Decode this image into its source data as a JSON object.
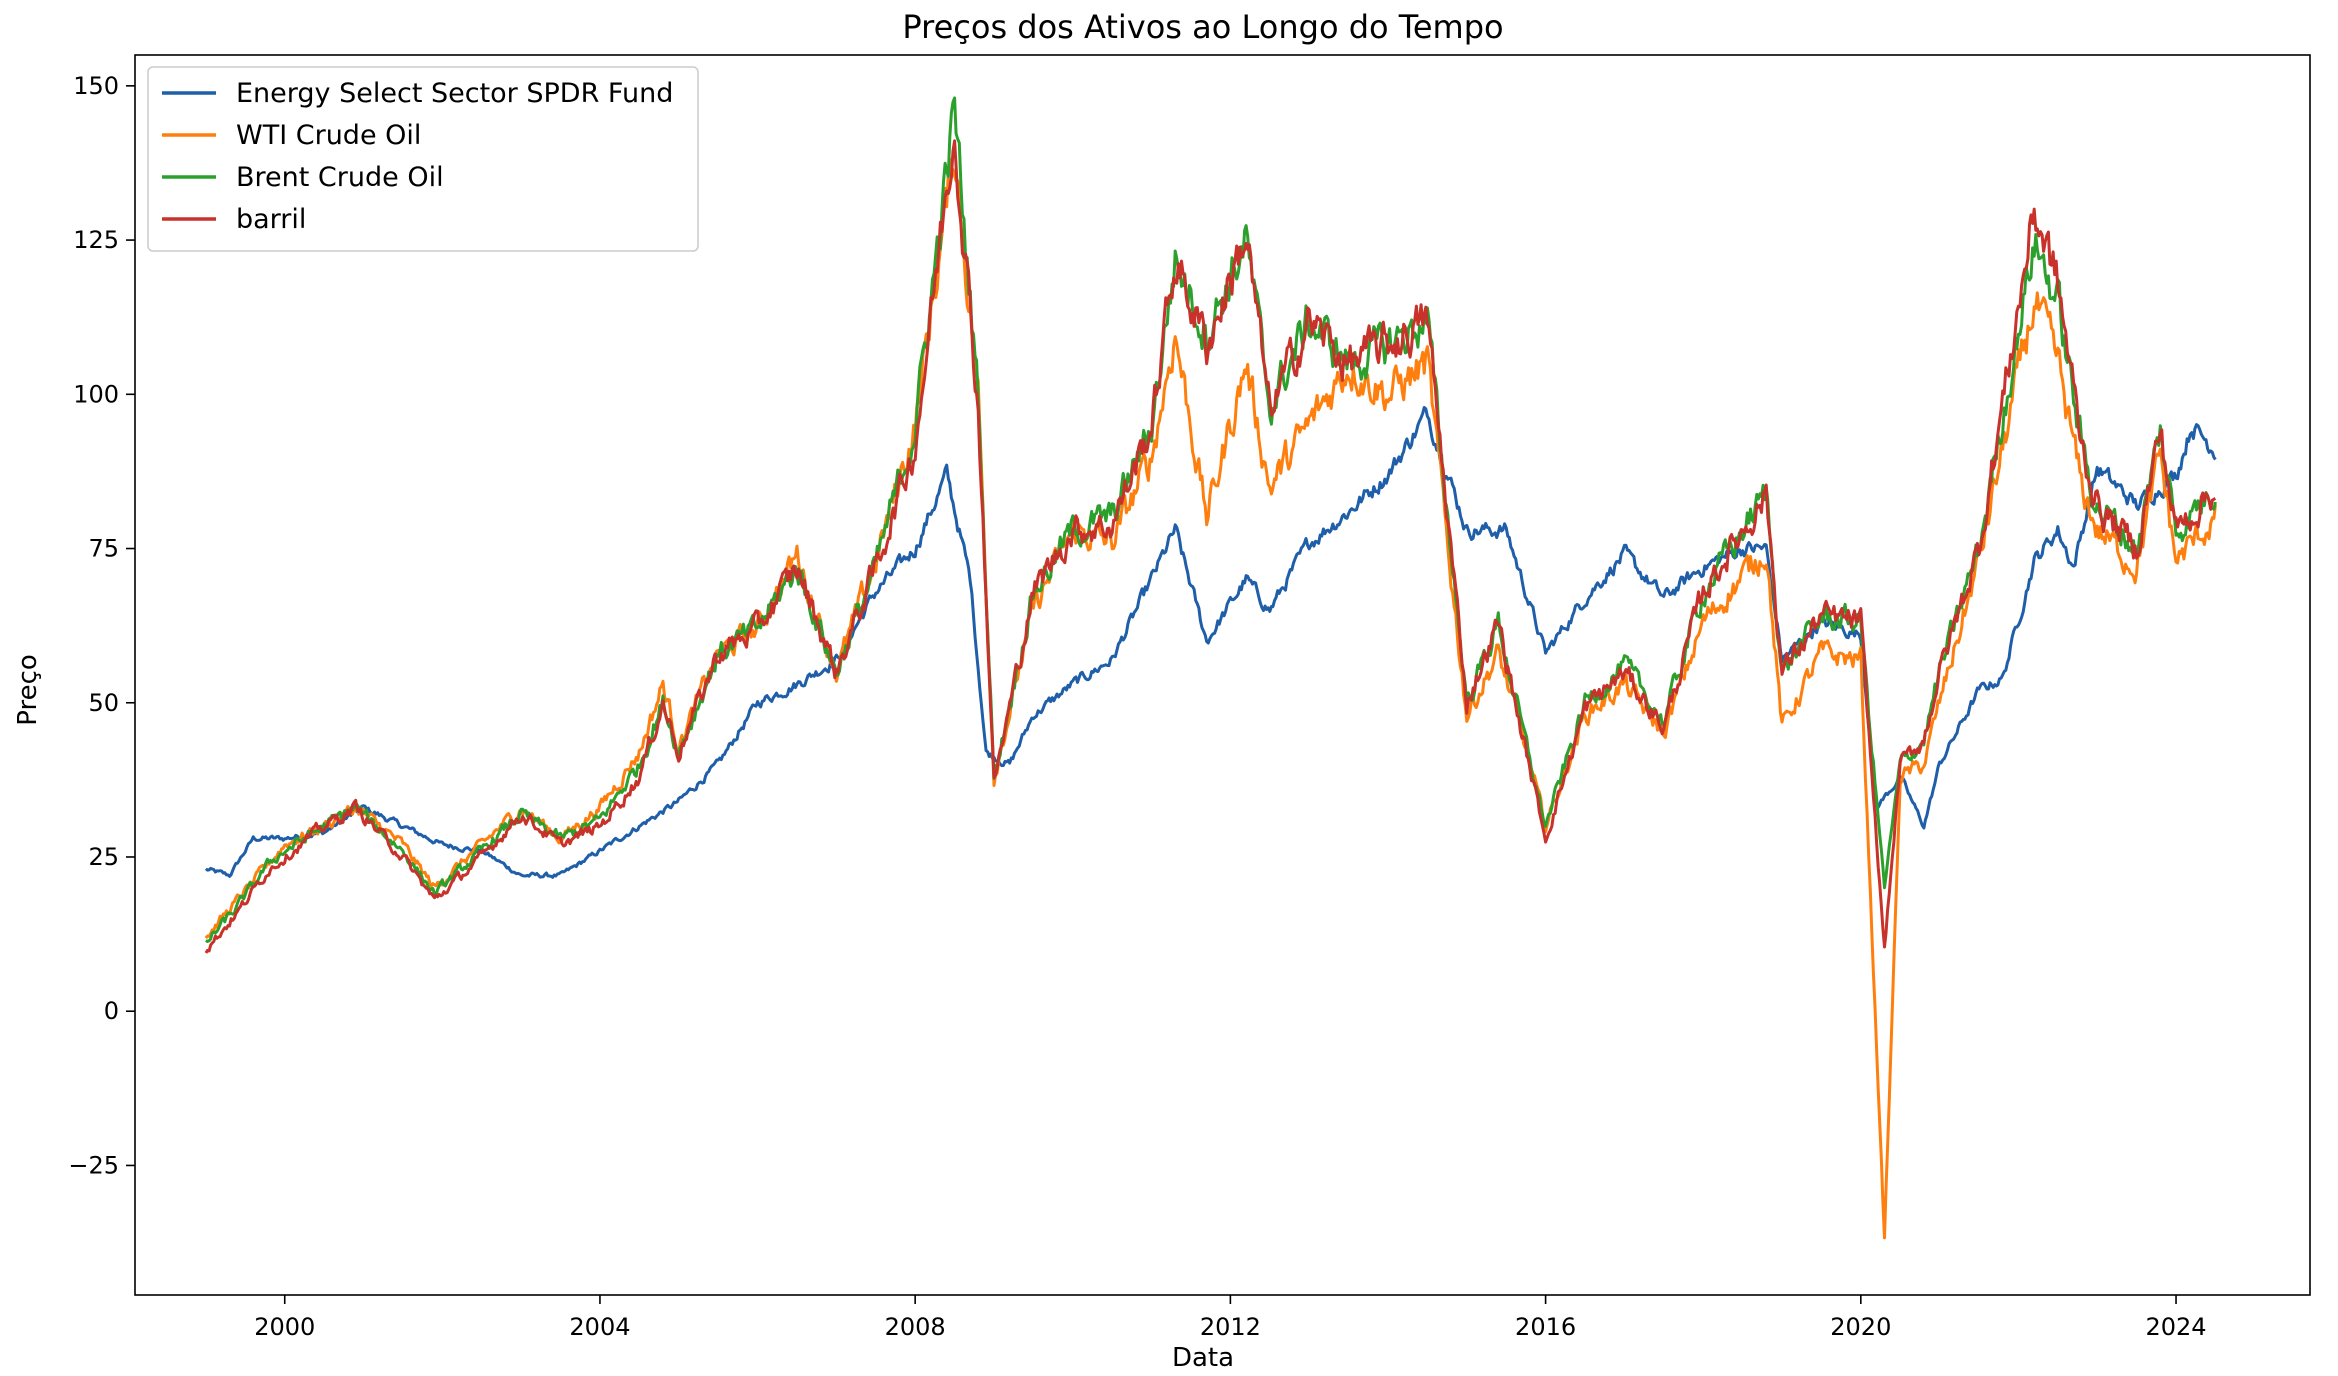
{
  "chart_data": {
    "type": "line",
    "title": "Preços dos Ativos ao Longo do Tempo",
    "xlabel": "Data",
    "ylabel": "Preço",
    "xlim": [
      1998.1,
      2025.7
    ],
    "ylim": [
      -46,
      155
    ],
    "x_ticks": [
      2000,
      2004,
      2008,
      2012,
      2016,
      2020,
      2024
    ],
    "x_tick_labels": [
      "2000",
      "2004",
      "2008",
      "2012",
      "2016",
      "2020",
      "2024"
    ],
    "y_ticks": [
      -25,
      0,
      25,
      50,
      75,
      100,
      125,
      150
    ],
    "y_tick_labels": [
      "−25",
      "0",
      "25",
      "50",
      "75",
      "100",
      "125",
      "150"
    ],
    "grid": false,
    "legend_position": "top-left",
    "series": [
      {
        "name": "Energy Select Sector SPDR Fund",
        "color": "#1f5ea8",
        "points": [
          [
            1999.0,
            23
          ],
          [
            1999.3,
            22
          ],
          [
            1999.6,
            28
          ],
          [
            2000.0,
            28
          ],
          [
            2000.5,
            29
          ],
          [
            2001.0,
            33
          ],
          [
            2001.5,
            30
          ],
          [
            2002.0,
            27
          ],
          [
            2002.5,
            26
          ],
          [
            2003.0,
            22
          ],
          [
            2003.5,
            22
          ],
          [
            2004.0,
            26
          ],
          [
            2004.5,
            30
          ],
          [
            2005.0,
            34
          ],
          [
            2005.5,
            40
          ],
          [
            2006.0,
            50
          ],
          [
            2006.5,
            53
          ],
          [
            2007.0,
            57
          ],
          [
            2007.5,
            68
          ],
          [
            2008.0,
            75
          ],
          [
            2008.4,
            87
          ],
          [
            2008.7,
            70
          ],
          [
            2008.9,
            42
          ],
          [
            2009.2,
            40
          ],
          [
            2009.5,
            48
          ],
          [
            2010.0,
            53
          ],
          [
            2010.5,
            57
          ],
          [
            2011.0,
            70
          ],
          [
            2011.3,
            78
          ],
          [
            2011.7,
            60
          ],
          [
            2012.2,
            70
          ],
          [
            2012.5,
            65
          ],
          [
            2013.0,
            76
          ],
          [
            2013.5,
            81
          ],
          [
            2014.0,
            87
          ],
          [
            2014.5,
            97
          ],
          [
            2015.0,
            78
          ],
          [
            2015.5,
            78
          ],
          [
            2015.8,
            66
          ],
          [
            2016.0,
            58
          ],
          [
            2016.5,
            67
          ],
          [
            2017.0,
            74
          ],
          [
            2017.5,
            67
          ],
          [
            2018.0,
            72
          ],
          [
            2018.5,
            75
          ],
          [
            2018.8,
            75
          ],
          [
            2019.0,
            57
          ],
          [
            2019.5,
            63
          ],
          [
            2020.0,
            61
          ],
          [
            2020.2,
            33
          ],
          [
            2020.5,
            38
          ],
          [
            2020.8,
            30
          ],
          [
            2021.0,
            40
          ],
          [
            2021.5,
            52
          ],
          [
            2021.8,
            54
          ],
          [
            2022.2,
            73
          ],
          [
            2022.5,
            78
          ],
          [
            2022.7,
            72
          ],
          [
            2023.0,
            88
          ],
          [
            2023.5,
            82
          ],
          [
            2024.0,
            87
          ],
          [
            2024.2,
            95
          ],
          [
            2024.5,
            91
          ]
        ]
      },
      {
        "name": "WTI Crude Oil",
        "color": "#ff7f0e",
        "points": [
          [
            1999.0,
            12
          ],
          [
            1999.4,
            18
          ],
          [
            1999.8,
            24
          ],
          [
            2000.0,
            27
          ],
          [
            2000.5,
            30
          ],
          [
            2000.9,
            33
          ],
          [
            2001.5,
            27
          ],
          [
            2001.9,
            20
          ],
          [
            2002.5,
            27
          ],
          [
            2003.0,
            33
          ],
          [
            2003.5,
            28
          ],
          [
            2004.0,
            33
          ],
          [
            2004.5,
            42
          ],
          [
            2004.8,
            53
          ],
          [
            2005.0,
            43
          ],
          [
            2005.5,
            58
          ],
          [
            2006.0,
            62
          ],
          [
            2006.5,
            74
          ],
          [
            2007.0,
            55
          ],
          [
            2007.5,
            73
          ],
          [
            2008.0,
            95
          ],
          [
            2008.5,
            140
          ],
          [
            2008.8,
            100
          ],
          [
            2009.0,
            38
          ],
          [
            2009.5,
            65
          ],
          [
            2010.0,
            78
          ],
          [
            2010.5,
            76
          ],
          [
            2011.0,
            90
          ],
          [
            2011.3,
            110
          ],
          [
            2011.7,
            80
          ],
          [
            2012.2,
            105
          ],
          [
            2012.5,
            85
          ],
          [
            2013.0,
            95
          ],
          [
            2013.5,
            105
          ],
          [
            2014.0,
            100
          ],
          [
            2014.5,
            105
          ],
          [
            2015.0,
            48
          ],
          [
            2015.4,
            58
          ],
          [
            2015.7,
            45
          ],
          [
            2016.0,
            30
          ],
          [
            2016.5,
            48
          ],
          [
            2017.0,
            53
          ],
          [
            2017.5,
            45
          ],
          [
            2018.0,
            63
          ],
          [
            2018.8,
            75
          ],
          [
            2019.0,
            46
          ],
          [
            2019.5,
            58
          ],
          [
            2020.0,
            57
          ],
          [
            2020.3,
            -37
          ],
          [
            2020.5,
            38
          ],
          [
            2020.8,
            40
          ],
          [
            2021.0,
            50
          ],
          [
            2021.5,
            73
          ],
          [
            2022.2,
            115
          ],
          [
            2022.5,
            105
          ],
          [
            2022.8,
            85
          ],
          [
            2023.0,
            78
          ],
          [
            2023.5,
            72
          ],
          [
            2023.8,
            90
          ],
          [
            2024.0,
            73
          ],
          [
            2024.5,
            80
          ]
        ]
      },
      {
        "name": "Brent Crude Oil",
        "color": "#2ca02c",
        "points": [
          [
            1999.0,
            11
          ],
          [
            1999.4,
            17
          ],
          [
            1999.8,
            24
          ],
          [
            2000.0,
            26
          ],
          [
            2000.5,
            30
          ],
          [
            2000.9,
            33
          ],
          [
            2001.5,
            26
          ],
          [
            2001.9,
            19
          ],
          [
            2002.5,
            26
          ],
          [
            2003.0,
            32
          ],
          [
            2003.5,
            28
          ],
          [
            2004.0,
            31
          ],
          [
            2004.5,
            40
          ],
          [
            2004.8,
            50
          ],
          [
            2005.0,
            42
          ],
          [
            2005.5,
            58
          ],
          [
            2006.0,
            62
          ],
          [
            2006.5,
            72
          ],
          [
            2007.0,
            55
          ],
          [
            2007.5,
            72
          ],
          [
            2008.0,
            95
          ],
          [
            2008.5,
            146
          ],
          [
            2008.8,
            100
          ],
          [
            2009.0,
            38
          ],
          [
            2009.5,
            68
          ],
          [
            2010.0,
            78
          ],
          [
            2010.5,
            80
          ],
          [
            2011.0,
            95
          ],
          [
            2011.3,
            122
          ],
          [
            2011.7,
            110
          ],
          [
            2012.2,
            125
          ],
          [
            2012.5,
            98
          ],
          [
            2013.0,
            112
          ],
          [
            2013.5,
            105
          ],
          [
            2014.0,
            108
          ],
          [
            2014.5,
            112
          ],
          [
            2015.0,
            50
          ],
          [
            2015.4,
            63
          ],
          [
            2015.7,
            46
          ],
          [
            2016.0,
            30
          ],
          [
            2016.5,
            50
          ],
          [
            2017.0,
            56
          ],
          [
            2017.5,
            47
          ],
          [
            2018.0,
            68
          ],
          [
            2018.8,
            84
          ],
          [
            2019.0,
            55
          ],
          [
            2019.5,
            64
          ],
          [
            2020.0,
            63
          ],
          [
            2020.3,
            20
          ],
          [
            2020.5,
            40
          ],
          [
            2020.8,
            44
          ],
          [
            2021.0,
            55
          ],
          [
            2021.5,
            75
          ],
          [
            2022.2,
            125
          ],
          [
            2022.5,
            115
          ],
          [
            2022.8,
            92
          ],
          [
            2023.0,
            82
          ],
          [
            2023.5,
            75
          ],
          [
            2023.8,
            94
          ],
          [
            2024.0,
            78
          ],
          [
            2024.5,
            85
          ]
        ]
      },
      {
        "name": "barril",
        "color": "#c8322a",
        "points": [
          [
            1999.0,
            10
          ],
          [
            1999.4,
            16
          ],
          [
            1999.8,
            23
          ],
          [
            2000.0,
            25
          ],
          [
            2000.5,
            30
          ],
          [
            2000.9,
            33
          ],
          [
            2001.5,
            25
          ],
          [
            2001.9,
            18
          ],
          [
            2002.5,
            25
          ],
          [
            2003.0,
            32
          ],
          [
            2003.5,
            27
          ],
          [
            2004.0,
            30
          ],
          [
            2004.5,
            38
          ],
          [
            2004.8,
            50
          ],
          [
            2005.0,
            42
          ],
          [
            2005.5,
            58
          ],
          [
            2006.0,
            62
          ],
          [
            2006.5,
            72
          ],
          [
            2007.0,
            55
          ],
          [
            2007.5,
            72
          ],
          [
            2008.0,
            92
          ],
          [
            2008.5,
            144
          ],
          [
            2008.8,
            98
          ],
          [
            2009.0,
            37
          ],
          [
            2009.5,
            68
          ],
          [
            2010.0,
            78
          ],
          [
            2010.5,
            79
          ],
          [
            2011.0,
            95
          ],
          [
            2011.3,
            122
          ],
          [
            2011.7,
            108
          ],
          [
            2012.2,
            126
          ],
          [
            2012.5,
            97
          ],
          [
            2013.0,
            112
          ],
          [
            2013.5,
            105
          ],
          [
            2014.0,
            108
          ],
          [
            2014.5,
            112
          ],
          [
            2015.0,
            50
          ],
          [
            2015.4,
            63
          ],
          [
            2015.7,
            45
          ],
          [
            2016.0,
            28
          ],
          [
            2016.5,
            49
          ],
          [
            2017.0,
            55
          ],
          [
            2017.5,
            46
          ],
          [
            2018.0,
            68
          ],
          [
            2018.8,
            84
          ],
          [
            2019.0,
            55
          ],
          [
            2019.5,
            64
          ],
          [
            2020.0,
            63
          ],
          [
            2020.3,
            10
          ],
          [
            2020.5,
            40
          ],
          [
            2020.8,
            44
          ],
          [
            2021.0,
            55
          ],
          [
            2021.5,
            75
          ],
          [
            2022.2,
            130
          ],
          [
            2022.5,
            118
          ],
          [
            2022.8,
            92
          ],
          [
            2023.0,
            82
          ],
          [
            2023.5,
            75
          ],
          [
            2023.8,
            94
          ],
          [
            2024.0,
            78
          ],
          [
            2024.5,
            85
          ]
        ]
      }
    ]
  }
}
